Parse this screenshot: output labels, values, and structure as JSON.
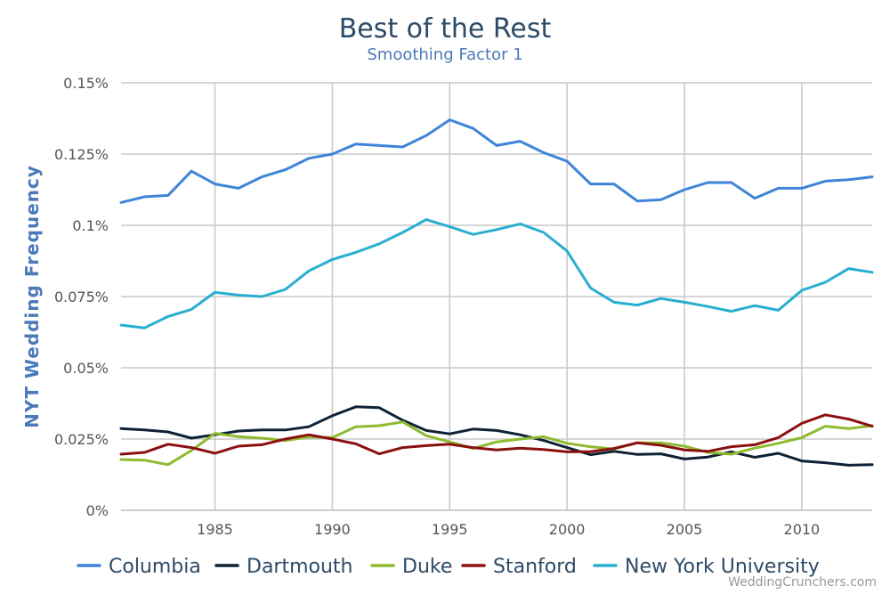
{
  "chart_data": {
    "type": "line",
    "title": "Best of the Rest",
    "subtitle": "Smoothing Factor 1",
    "ylabel": "NYT Wedding Frequency",
    "xlabel": "",
    "xlim": [
      1981,
      2013
    ],
    "ylim": [
      0,
      0.15
    ],
    "x_ticks": [
      1985,
      1990,
      1995,
      2000,
      2005,
      2010
    ],
    "x_tick_labels": [
      "1985",
      "1990",
      "1995",
      "2000",
      "2005",
      "2010"
    ],
    "y_ticks": [
      0,
      0.025,
      0.05,
      0.075,
      0.1,
      0.125,
      0.15
    ],
    "y_tick_labels": [
      "0%",
      "0.025%",
      "0.05%",
      "0.075%",
      "0.1%",
      "0.125%",
      "0.15%"
    ],
    "grid": true,
    "legend_position": "bottom",
    "credit": "WeddingCrunchers.com",
    "x": [
      1981,
      1982,
      1983,
      1984,
      1985,
      1986,
      1987,
      1988,
      1989,
      1990,
      1991,
      1992,
      1993,
      1994,
      1995,
      1996,
      1997,
      1998,
      1999,
      2000,
      2001,
      2002,
      2003,
      2004,
      2005,
      2006,
      2007,
      2008,
      2009,
      2010,
      2011,
      2012,
      2013
    ],
    "series": [
      {
        "name": "Columbia",
        "color": "#3e84d9",
        "values": [
          0.108,
          0.11,
          0.1105,
          0.119,
          0.1145,
          0.113,
          0.117,
          0.1195,
          0.1235,
          0.125,
          0.1285,
          0.128,
          0.1275,
          0.1315,
          0.137,
          0.134,
          0.128,
          0.1295,
          0.1255,
          0.1225,
          0.1145,
          0.1145,
          0.1085,
          0.109,
          0.1125,
          0.115,
          0.115,
          0.1095,
          0.113,
          0.113,
          0.1155,
          0.116,
          0.117
        ]
      },
      {
        "name": "Dartmouth",
        "color": "#0e2235",
        "values": [
          0.0287,
          0.0282,
          0.0275,
          0.0253,
          0.0265,
          0.0278,
          0.0282,
          0.0282,
          0.0293,
          0.0332,
          0.0363,
          0.036,
          0.0316,
          0.028,
          0.0268,
          0.0285,
          0.028,
          0.0265,
          0.0245,
          0.022,
          0.0195,
          0.0207,
          0.0196,
          0.0198,
          0.018,
          0.0187,
          0.0205,
          0.0186,
          0.02,
          0.0173,
          0.0167,
          0.0158,
          0.016
        ]
      },
      {
        "name": "Duke",
        "color": "#8dba2e",
        "values": [
          0.0178,
          0.0176,
          0.016,
          0.021,
          0.027,
          0.0258,
          0.0253,
          0.0245,
          0.0257,
          0.0255,
          0.0293,
          0.0297,
          0.031,
          0.0262,
          0.024,
          0.0217,
          0.024,
          0.025,
          0.0258,
          0.0235,
          0.0223,
          0.0215,
          0.0237,
          0.0237,
          0.0225,
          0.0203,
          0.0197,
          0.0218,
          0.0235,
          0.0255,
          0.0295,
          0.0287,
          0.0297
        ]
      },
      {
        "name": "Stanford",
        "color": "#8b1010",
        "values": [
          0.0197,
          0.0203,
          0.0232,
          0.022,
          0.02,
          0.0225,
          0.023,
          0.025,
          0.0265,
          0.025,
          0.0233,
          0.0198,
          0.022,
          0.0227,
          0.0232,
          0.022,
          0.0212,
          0.0218,
          0.0213,
          0.0205,
          0.0206,
          0.0217,
          0.0237,
          0.0228,
          0.0212,
          0.0207,
          0.0223,
          0.023,
          0.0255,
          0.0305,
          0.0335,
          0.032,
          0.0295
        ]
      },
      {
        "name": "New York University",
        "color": "#28aed0",
        "values": [
          0.065,
          0.064,
          0.068,
          0.0705,
          0.0765,
          0.0755,
          0.075,
          0.0775,
          0.084,
          0.088,
          0.0905,
          0.0935,
          0.0975,
          0.102,
          0.0995,
          0.0968,
          0.0985,
          0.1005,
          0.0975,
          0.091,
          0.078,
          0.073,
          0.072,
          0.0743,
          0.073,
          0.0715,
          0.0698,
          0.0718,
          0.0702,
          0.0772,
          0.08,
          0.0848,
          0.0835
        ]
      }
    ]
  }
}
